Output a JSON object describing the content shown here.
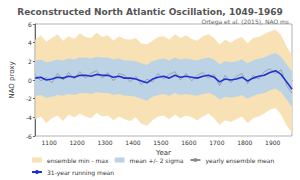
{
  "chart_data": {
    "type": "line",
    "title": "Reconstructed North Atlantic Oscillation, 1049-1969",
    "subtitle": "Ortega et al. (2015), NAO ms",
    "x_label": "Year",
    "y_label": "NAO proxy",
    "xlim": [
      1049,
      1969
    ],
    "ylim": [
      -6,
      6
    ],
    "xticks": [
      1100,
      1200,
      1300,
      1400,
      1500,
      1600,
      1700,
      1800,
      1900
    ],
    "yticks": [
      -6,
      -4,
      -2,
      0,
      2,
      4,
      6
    ],
    "grid": false,
    "legend": "lower left",
    "x": [
      1050,
      1070,
      1090,
      1110,
      1130,
      1150,
      1170,
      1190,
      1210,
      1230,
      1250,
      1270,
      1290,
      1310,
      1330,
      1350,
      1370,
      1390,
      1410,
      1430,
      1450,
      1470,
      1490,
      1510,
      1530,
      1550,
      1570,
      1590,
      1610,
      1630,
      1650,
      1670,
      1690,
      1710,
      1730,
      1750,
      1770,
      1790,
      1810,
      1830,
      1850,
      1870,
      1890,
      1910,
      1930,
      1950,
      1969
    ],
    "series": [
      {
        "name": "ensemble min - max",
        "type": "band",
        "color": "#f7e1b5",
        "lower": [
          -4.2,
          -3.9,
          -4.6,
          -4.1,
          -3.8,
          -4.4,
          -3.7,
          -4.0,
          -3.6,
          -3.9,
          -4.1,
          -3.5,
          -3.9,
          -3.8,
          -4.3,
          -3.9,
          -4.2,
          -4.4,
          -4.0,
          -4.7,
          -4.9,
          -4.3,
          -3.9,
          -3.8,
          -4.2,
          -3.7,
          -4.1,
          -3.8,
          -4.0,
          -4.3,
          -3.9,
          -3.6,
          -4.1,
          -4.8,
          -4.3,
          -4.5,
          -4.2,
          -3.9,
          -4.6,
          -4.1,
          -3.9,
          -3.6,
          -3.2,
          -3.0,
          -3.7,
          -4.9,
          -5.6
        ],
        "upper": [
          4.3,
          4.8,
          4.1,
          4.5,
          4.9,
          4.2,
          4.7,
          4.4,
          5.0,
          4.6,
          4.5,
          5.1,
          4.6,
          4.8,
          4.2,
          4.7,
          4.4,
          4.3,
          4.5,
          3.9,
          3.8,
          4.2,
          4.6,
          4.7,
          4.3,
          4.9,
          4.5,
          4.8,
          4.4,
          4.2,
          4.7,
          4.9,
          4.5,
          3.8,
          4.3,
          4.0,
          4.4,
          4.6,
          3.9,
          4.5,
          4.6,
          4.9,
          5.2,
          5.4,
          4.8,
          3.6,
          2.6
        ]
      },
      {
        "name": "mean +/- 2 sigma",
        "type": "band",
        "color": "#bcd3e6",
        "lower": [
          -1.7,
          -1.6,
          -1.9,
          -1.8,
          -1.6,
          -1.7,
          -1.5,
          -1.6,
          -1.4,
          -1.4,
          -1.5,
          -1.3,
          -1.4,
          -1.4,
          -1.6,
          -1.5,
          -1.7,
          -1.7,
          -1.8,
          -2.0,
          -2.2,
          -1.8,
          -1.6,
          -1.5,
          -1.7,
          -1.4,
          -1.6,
          -1.5,
          -1.6,
          -1.7,
          -1.5,
          -1.4,
          -1.6,
          -2.1,
          -1.8,
          -1.9,
          -1.8,
          -1.6,
          -2.0,
          -1.7,
          -1.5,
          -1.4,
          -1.1,
          -0.9,
          -1.3,
          -2.1,
          -2.9
        ],
        "upper": [
          2.1,
          2.2,
          1.9,
          2.0,
          2.2,
          2.1,
          2.3,
          2.2,
          2.4,
          2.4,
          2.3,
          2.5,
          2.4,
          2.4,
          2.2,
          2.3,
          2.1,
          2.1,
          2.0,
          1.8,
          1.6,
          2.0,
          2.2,
          2.3,
          2.1,
          2.4,
          2.2,
          2.3,
          2.2,
          2.1,
          2.3,
          2.4,
          2.2,
          1.7,
          2.0,
          1.9,
          2.0,
          2.2,
          1.8,
          2.1,
          2.3,
          2.4,
          2.7,
          2.9,
          2.5,
          1.7,
          0.9
        ]
      },
      {
        "name": "yearly ensemble mean",
        "type": "line",
        "color": "#8c8c8c",
        "values": [
          0.6,
          -0.1,
          0.3,
          -0.3,
          0.7,
          0.0,
          0.8,
          0.1,
          0.9,
          0.2,
          0.7,
          1.0,
          0.2,
          0.8,
          -0.1,
          0.7,
          0.5,
          -0.2,
          0.4,
          -0.5,
          0.1,
          -0.2,
          0.7,
          0.1,
          0.6,
          0.9,
          0.0,
          0.7,
          -0.1,
          0.5,
          0.8,
          0.2,
          0.6,
          -0.6,
          0.5,
          -0.3,
          0.4,
          0.7,
          -0.4,
          0.5,
          0.1,
          0.9,
          1.2,
          0.7,
          1.1,
          -0.6,
          -1.4
        ]
      },
      {
        "name": "31-year running mean",
        "type": "line",
        "color": "#1f2fd6",
        "values": [
          0.2,
          0.3,
          0.0,
          0.1,
          0.3,
          0.2,
          0.4,
          0.3,
          0.5,
          0.5,
          0.4,
          0.6,
          0.5,
          0.5,
          0.3,
          0.4,
          0.2,
          0.2,
          0.1,
          -0.1,
          -0.3,
          0.1,
          0.3,
          0.4,
          0.2,
          0.5,
          0.3,
          0.4,
          0.3,
          0.2,
          0.4,
          0.5,
          0.3,
          -0.2,
          0.1,
          0.0,
          0.1,
          0.3,
          -0.1,
          0.2,
          0.4,
          0.5,
          0.8,
          1.0,
          0.6,
          -0.2,
          -1.0
        ]
      }
    ]
  }
}
